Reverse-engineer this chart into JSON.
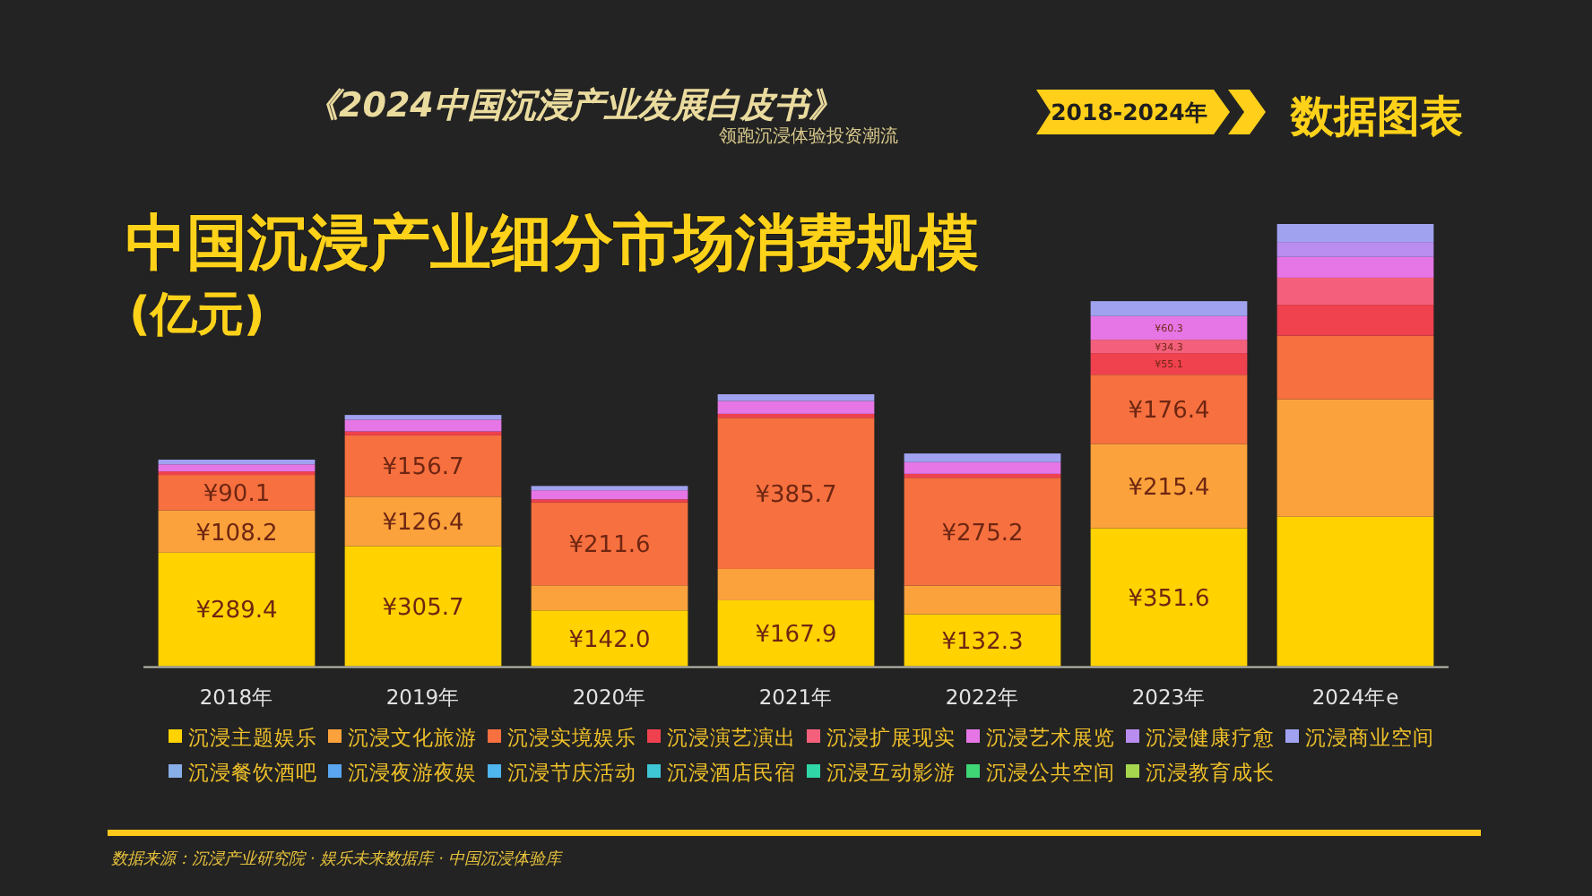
{
  "chart_data": {
    "type": "bar",
    "stacked": true,
    "title": "中国沉浸产业细分市场消费规模",
    "subtitle": "(亿元)",
    "annotations": [
      "《2024中国沉浸产业发展白皮书》",
      "领跑沉浸体验投资潮流",
      "2018-2024年",
      "数据图表",
      "数据来源：沉浸产业研究院 · 娱乐未来数据库 · 中国沉浸体验库"
    ],
    "categories": [
      "2018年",
      "2019年",
      "2020年",
      "2021年",
      "2022年",
      "2023年",
      "2024年e"
    ],
    "legend": "bottom",
    "series": [
      {
        "name": "沉浸主题娱乐",
        "color": "#ffd200",
        "values": [
          289.4,
          305.7,
          142.0,
          167.9,
          132.3,
          351.6,
          381
        ],
        "value_labels": [
          "¥289.4",
          "¥305.7",
          "¥142.0",
          "¥167.9",
          "¥132.3",
          "¥351.6",
          null
        ]
      },
      {
        "name": "沉浸文化旅游",
        "color": "#fba23c",
        "values": [
          108.2,
          126.4,
          64,
          80,
          73,
          215.4,
          300
        ],
        "value_labels": [
          "¥108.2",
          "¥126.4",
          null,
          null,
          null,
          "¥215.4",
          null
        ]
      },
      {
        "name": "沉浸实境娱乐",
        "color": "#f7703f",
        "values": [
          90.1,
          156.7,
          211.6,
          385.7,
          275.2,
          176.4,
          162
        ],
        "value_labels": [
          "¥90.1",
          "¥156.7",
          "¥211.6",
          "¥385.7",
          "¥275.2",
          "¥176.4",
          null
        ]
      },
      {
        "name": "沉浸演艺演出",
        "color": "#f0414f",
        "values": [
          9,
          10,
          8,
          10,
          10,
          55.1,
          79
        ],
        "value_labels": [
          null,
          null,
          null,
          null,
          null,
          "¥55.1",
          null
        ]
      },
      {
        "name": "沉浸扩展现实",
        "color": "#f4607c",
        "values": [
          null,
          null,
          null,
          null,
          null,
          34.3,
          69
        ],
        "value_labels": [
          null,
          null,
          null,
          null,
          null,
          "¥34.3",
          null
        ]
      },
      {
        "name": "沉浸艺术展览",
        "color": "#e676e6",
        "values": [
          18,
          30,
          23,
          33,
          30,
          60.3,
          53
        ],
        "value_labels": [
          null,
          null,
          null,
          null,
          null,
          "¥60.3",
          null
        ]
      },
      {
        "name": "沉浸健康疗愈",
        "color": "#b98cf0",
        "values": [
          null,
          null,
          null,
          null,
          null,
          null,
          38
        ]
      },
      {
        "name": "沉浸商业空间",
        "color": "#a0a2f0",
        "values": [
          12,
          12,
          11,
          17,
          22,
          38,
          46
        ]
      },
      {
        "name": "沉浸餐饮酒吧",
        "color": "#88aee8",
        "values": [
          null,
          null,
          null,
          null,
          null,
          null,
          null
        ]
      },
      {
        "name": "沉浸夜游夜娱",
        "color": "#5aa6f0",
        "values": [
          null,
          null,
          null,
          null,
          null,
          null,
          null
        ]
      },
      {
        "name": "沉浸节庆活动",
        "color": "#4fb6ee",
        "values": [
          null,
          null,
          null,
          null,
          null,
          null,
          null
        ]
      },
      {
        "name": "沉浸酒店民宿",
        "color": "#3ec6d6",
        "values": [
          null,
          null,
          null,
          null,
          null,
          null,
          null
        ]
      },
      {
        "name": "沉浸互动影游",
        "color": "#30d6a6",
        "values": [
          null,
          null,
          null,
          null,
          null,
          null,
          null
        ]
      },
      {
        "name": "沉浸公共空间",
        "color": "#3fd676",
        "values": [
          null,
          null,
          null,
          null,
          null,
          null,
          null
        ]
      },
      {
        "name": "沉浸教育成长",
        "color": "#a6d64e",
        "values": [
          null,
          null,
          null,
          null,
          null,
          null,
          null
        ]
      }
    ]
  }
}
